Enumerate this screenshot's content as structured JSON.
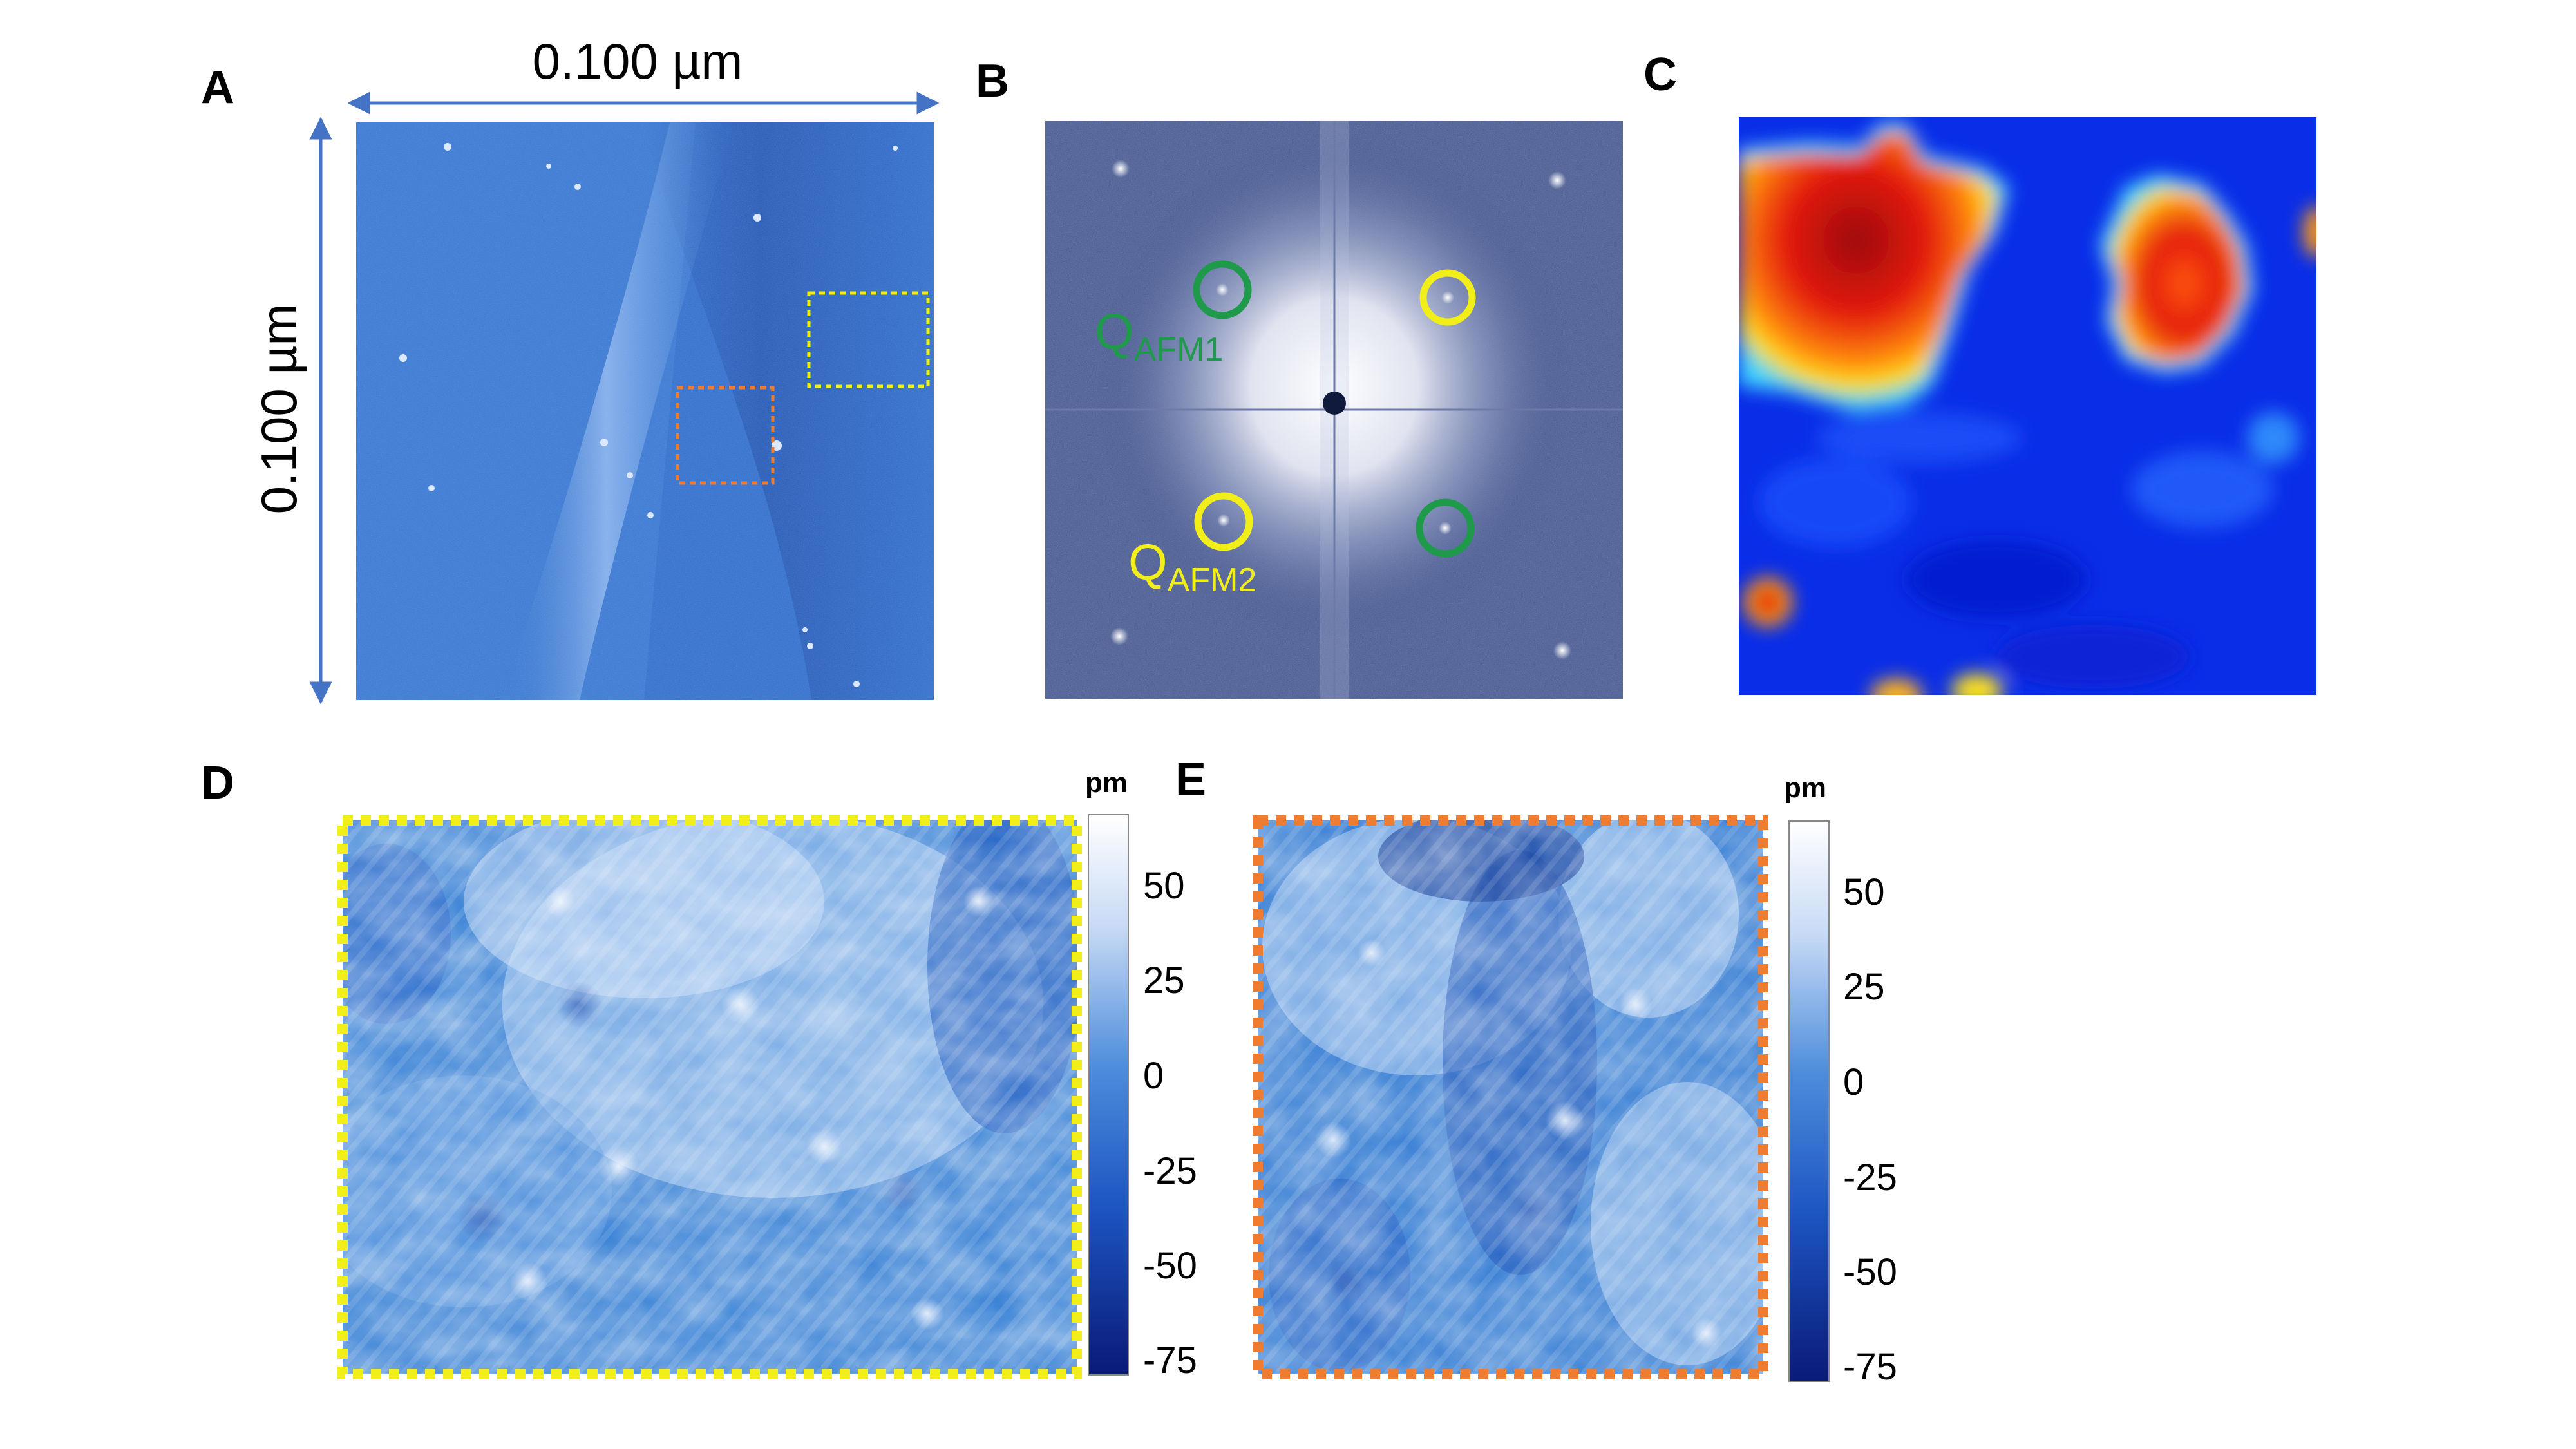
{
  "panels": {
    "A": {
      "letter": "A",
      "scale_x": "0.100 µm",
      "scale_y": "0.100 µm"
    },
    "B": {
      "letter": "B",
      "q1": {
        "main": "Q",
        "sub": "AFM1",
        "color": "#1e9a4a"
      },
      "q2": {
        "main": "Q",
        "sub": "AFM2",
        "color": "#f2ee1a"
      }
    },
    "C": {
      "letter": "C"
    },
    "D": {
      "letter": "D",
      "frame_color": "#f2ee1a",
      "colorbar": {
        "unit": "pm",
        "ticks": [
          "50",
          "25",
          "0",
          "-25",
          "-50",
          "-75"
        ]
      }
    },
    "E": {
      "letter": "E",
      "frame_color": "#ee7d31",
      "colorbar": {
        "unit": "pm",
        "ticks": [
          "50",
          "25",
          "0",
          "-25",
          "-50",
          "-75"
        ]
      }
    }
  },
  "colors": {
    "arrow": "#4472c4",
    "stm_base": "#2f6fcb",
    "fft_base": "#3b4d86",
    "map_low": "#0a2ee8",
    "map_high": "#e41a0f"
  }
}
